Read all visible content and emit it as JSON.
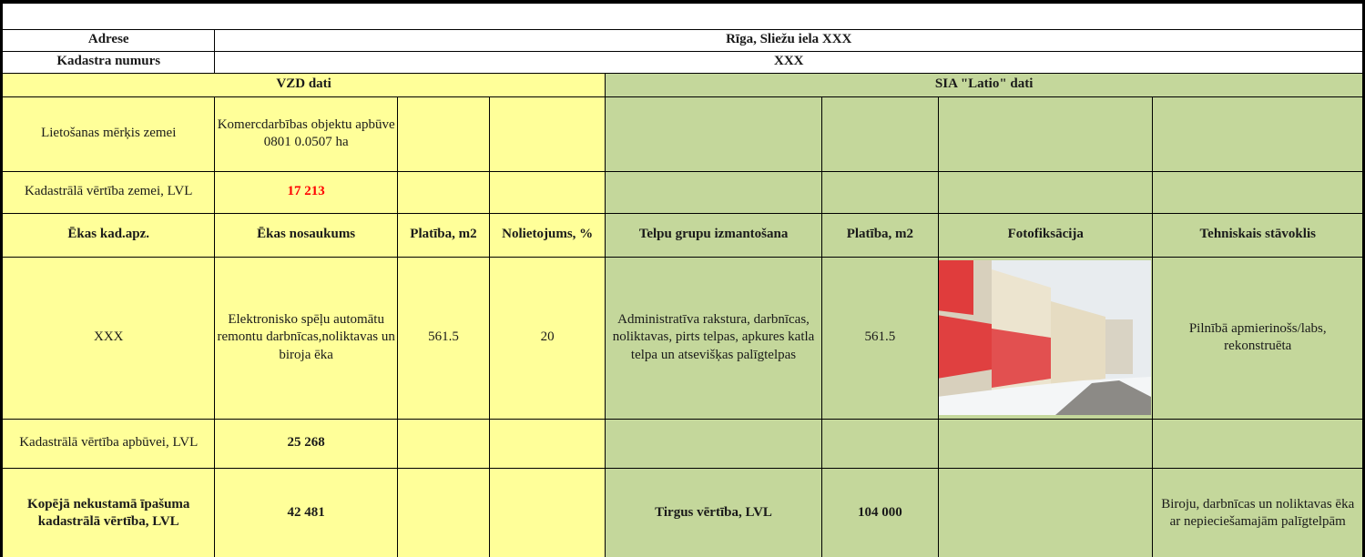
{
  "address": {
    "label": "Adrese",
    "value": "Rīga, Sliežu iela XXX"
  },
  "cadastre": {
    "label": "Kadastra numurs",
    "value": "XXX"
  },
  "sections": {
    "vzd": "VZD dati",
    "latio": "SIA \"Latio\" dati"
  },
  "land_use": {
    "label": "Lietošanas mērķis zemei",
    "value": "Komercdarbības objektu apbūve  0801 0.0507  ha"
  },
  "land_value": {
    "label": "Kadastrālā vērtība zemei, LVL",
    "value": "17 213"
  },
  "headers": [
    "Ēkas kad.apz.",
    "Ēkas nosaukums",
    "Platība, m2",
    "Nolietojums, %",
    "Telpu grupu izmantošana",
    "Platība, m2",
    "Fotofiksācija",
    "Tehniskais stāvoklis"
  ],
  "building": {
    "cad": "XXX",
    "name": "Elektronisko spēļu automātu remontu darbnīcas,noliktavas un biroja ēka",
    "area": "561.5",
    "wear": "20",
    "use": "Administratīva rakstura, darbnīcas, noliktavas, pirts telpas, apkures katla telpa un atsevišķas palīgtelpas",
    "area2": "561.5",
    "condition": "Pilnībā apmierinošs/labs, rekonstruēta"
  },
  "building_value": {
    "label": "Kadastrālā vērtība apbūvei, LVL",
    "value": "25 268"
  },
  "total": {
    "label": "Kopējā nekustamā īpašuma kadastrālā vērtība, LVL",
    "value": "42 481",
    "market_label": "Tirgus vērtība, LVL",
    "market_value": "104 000",
    "description": "Biroju, darbnīcas un noliktavas ēka ar nepieciešamajām palīgtelpām"
  }
}
